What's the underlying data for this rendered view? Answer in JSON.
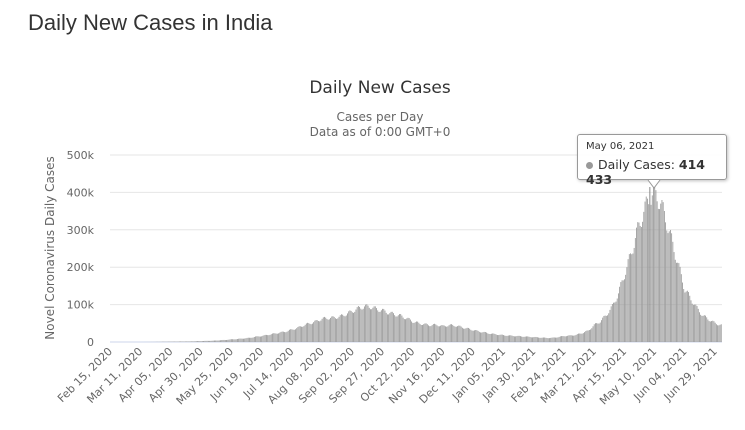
{
  "page_title": "Daily New Cases in India",
  "chart_data": {
    "type": "bar",
    "title": "Daily New Cases",
    "subtitle": "Cases per Day",
    "subtitle2": "Data as of 0:00 GMT+0",
    "ylabel": "Novel Coronavirus Daily Cases",
    "xlabel": "",
    "ylim": [
      0,
      500000
    ],
    "y_ticks": [
      "0",
      "100k",
      "200k",
      "300k",
      "400k",
      "500k"
    ],
    "x_ticks": [
      "Feb 15, 2020",
      "Mar 11, 2020",
      "Apr 05, 2020",
      "Apr 30, 2020",
      "May 25, 2020",
      "Jun 19, 2020",
      "Jul 14, 2020",
      "Aug 08, 2020",
      "Sep 02, 2020",
      "Sep 27, 2020",
      "Oct 22, 2020",
      "Nov 16, 2020",
      "Dec 11, 2020",
      "Jan 05, 2021",
      "Jan 30, 2021",
      "Feb 24, 2021",
      "Mar 21, 2021",
      "Apr 15, 2021",
      "May 10, 2021",
      "Jun 04, 2021",
      "Jun 29, 2021"
    ],
    "x_start": "Feb 15, 2020",
    "sample_interval_days": 5,
    "values_thousands": [
      0,
      0,
      0,
      0,
      0,
      0,
      0.1,
      0.2,
      0.5,
      0.8,
      1,
      1.2,
      1.5,
      1.5,
      2,
      2.5,
      3,
      3.5,
      4.5,
      5.5,
      7,
      8,
      9.5,
      11,
      14,
      16,
      19,
      22,
      25,
      28,
      33,
      38,
      45,
      50,
      55,
      62,
      64,
      65,
      68,
      75,
      82,
      90,
      95,
      94,
      88,
      84,
      78,
      74,
      70,
      63,
      55,
      50,
      47,
      45,
      46,
      42,
      45,
      44,
      40,
      36,
      32,
      28,
      25,
      22,
      20,
      18,
      17,
      16,
      15,
      14,
      13,
      12,
      11,
      11,
      13,
      16,
      17,
      19,
      24,
      30,
      45,
      55,
      72,
      95,
      130,
      180,
      230,
      290,
      340,
      380,
      400,
      370,
      320,
      260,
      200,
      140,
      115,
      90,
      70,
      60,
      50,
      45
    ],
    "grid": true,
    "legend": "none",
    "bar_color": "#999999",
    "tooltip": {
      "date": "May 06, 2021",
      "series": "Daily Cases",
      "value": "414 433",
      "day_index": 446,
      "raw": 414433
    }
  }
}
